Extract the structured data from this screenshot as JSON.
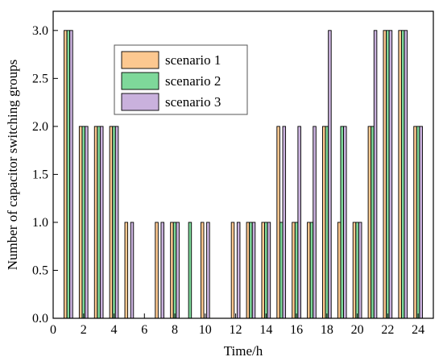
{
  "chart_data": {
    "type": "bar",
    "xlabel": "Time/h",
    "ylabel": "Number of capacitor switching groups",
    "xlim": [
      0,
      25
    ],
    "ylim": [
      0,
      3.2
    ],
    "xticks": [
      0,
      2,
      4,
      6,
      8,
      10,
      12,
      14,
      16,
      18,
      20,
      22,
      24
    ],
    "yticks": [
      "0.0",
      "0.5",
      "1.0",
      "1.5",
      "2.0",
      "2.5",
      "3.0"
    ],
    "legend_position": "top-center",
    "grid": false,
    "x": [
      1,
      2,
      3,
      4,
      5,
      6,
      7,
      8,
      9,
      10,
      11,
      12,
      13,
      14,
      15,
      16,
      17,
      18,
      19,
      20,
      21,
      22,
      23,
      24
    ],
    "series": [
      {
        "name": "scenario 1",
        "color": "#fcc890",
        "values": [
          3,
          2,
          2,
          2,
          1,
          0,
          1,
          1,
          0,
          1,
          0,
          1,
          1,
          1,
          2,
          1,
          1,
          2,
          1,
          1,
          2,
          3,
          3,
          2
        ]
      },
      {
        "name": "scenario 2",
        "color": "#7ed89a",
        "values": [
          3,
          2,
          2,
          2,
          0,
          0,
          0,
          1,
          1,
          0,
          0,
          0,
          1,
          1,
          1,
          1,
          1,
          2,
          2,
          1,
          2,
          3,
          3,
          2
        ]
      },
      {
        "name": "scenario 3",
        "color": "#c9b1dd",
        "values": [
          3,
          2,
          2,
          2,
          1,
          0,
          1,
          1,
          0,
          1,
          0,
          1,
          1,
          1,
          2,
          2,
          2,
          3,
          2,
          1,
          3,
          3,
          3,
          2
        ]
      }
    ]
  }
}
